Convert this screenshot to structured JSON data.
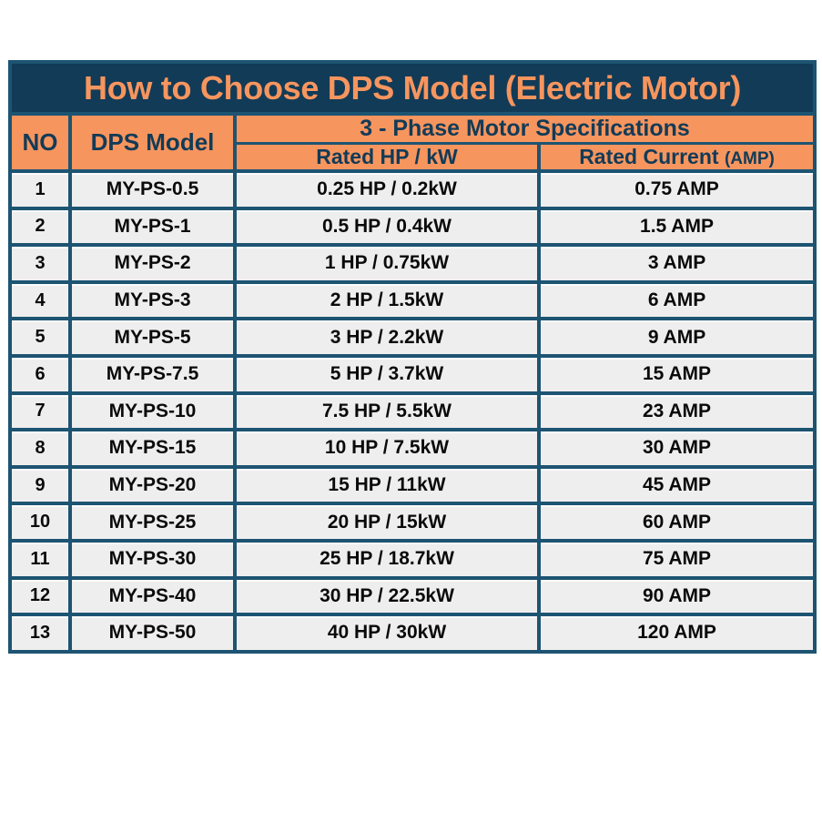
{
  "title": "How to Choose DPS Model (Electric Motor)",
  "table": {
    "columns": {
      "no": "NO",
      "model": "DPS Model",
      "spec_group": "3 - Phase Motor Specifications",
      "hp_kw": "Rated HP / kW",
      "current": "Rated Current",
      "current_unit": "(AMP)"
    },
    "rows": [
      {
        "no": "1",
        "model": "MY-PS-0.5",
        "hp_kw": "0.25 HP / 0.2kW",
        "current": "0.75 AMP"
      },
      {
        "no": "2",
        "model": "MY-PS-1",
        "hp_kw": "0.5 HP / 0.4kW",
        "current": "1.5 AMP"
      },
      {
        "no": "3",
        "model": "MY-PS-2",
        "hp_kw": "1 HP / 0.75kW",
        "current": "3 AMP"
      },
      {
        "no": "4",
        "model": "MY-PS-3",
        "hp_kw": "2 HP / 1.5kW",
        "current": "6 AMP"
      },
      {
        "no": "5",
        "model": "MY-PS-5",
        "hp_kw": "3 HP / 2.2kW",
        "current": "9 AMP"
      },
      {
        "no": "6",
        "model": "MY-PS-7.5",
        "hp_kw": "5 HP / 3.7kW",
        "current": "15 AMP"
      },
      {
        "no": "7",
        "model": "MY-PS-10",
        "hp_kw": "7.5 HP / 5.5kW",
        "current": "23 AMP"
      },
      {
        "no": "8",
        "model": "MY-PS-15",
        "hp_kw": "10 HP / 7.5kW",
        "current": "30 AMP"
      },
      {
        "no": "9",
        "model": "MY-PS-20",
        "hp_kw": "15 HP / 11kW",
        "current": "45 AMP"
      },
      {
        "no": "10",
        "model": "MY-PS-25",
        "hp_kw": "20 HP / 15kW",
        "current": "60 AMP"
      },
      {
        "no": "11",
        "model": "MY-PS-30",
        "hp_kw": "25 HP / 18.7kW",
        "current": "75 AMP"
      },
      {
        "no": "12",
        "model": "MY-PS-40",
        "hp_kw": "30 HP / 22.5kW",
        "current": "90 AMP"
      },
      {
        "no": "13",
        "model": "MY-PS-50",
        "hp_kw": "40 HP / 30kW",
        "current": "120 AMP"
      }
    ]
  },
  "colors": {
    "navy": "#123B57",
    "orange": "#F7955E",
    "border": "#1D5472",
    "rowbg": "#EFEEEE"
  }
}
